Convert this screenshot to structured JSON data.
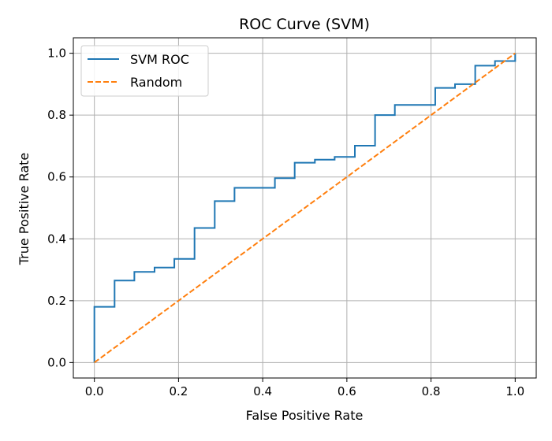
{
  "chart_data": {
    "type": "line",
    "title": "ROC Curve (SVM)",
    "xlabel": "False Positive Rate",
    "ylabel": "True Positive Rate",
    "xlim": [
      -0.05,
      1.05
    ],
    "ylim": [
      -0.05,
      1.05
    ],
    "xticks": [
      0.0,
      0.2,
      0.4,
      0.6,
      0.8,
      1.0
    ],
    "yticks": [
      0.0,
      0.2,
      0.4,
      0.6,
      0.8,
      1.0
    ],
    "xtick_labels": [
      "0.0",
      "0.2",
      "0.4",
      "0.6",
      "0.8",
      "1.0"
    ],
    "ytick_labels": [
      "0.0",
      "0.2",
      "0.4",
      "0.6",
      "0.8",
      "1.0"
    ],
    "grid": true,
    "legend_position": "top-left",
    "series": [
      {
        "name": "SVM ROC",
        "color": "#1f77b4",
        "style": "solid",
        "x": [
          0.0,
          0.0,
          0.048,
          0.048,
          0.095,
          0.095,
          0.143,
          0.143,
          0.19,
          0.19,
          0.238,
          0.238,
          0.286,
          0.286,
          0.333,
          0.333,
          0.429,
          0.429,
          0.476,
          0.476,
          0.524,
          0.524,
          0.571,
          0.571,
          0.619,
          0.619,
          0.667,
          0.667,
          0.714,
          0.714,
          0.81,
          0.81,
          0.857,
          0.857,
          0.905,
          0.905,
          0.952,
          0.952,
          1.0,
          1.0
        ],
        "y": [
          0.0,
          0.18,
          0.18,
          0.265,
          0.265,
          0.293,
          0.293,
          0.307,
          0.307,
          0.335,
          0.335,
          0.435,
          0.435,
          0.522,
          0.522,
          0.565,
          0.565,
          0.596,
          0.596,
          0.646,
          0.646,
          0.656,
          0.656,
          0.665,
          0.665,
          0.701,
          0.701,
          0.8,
          0.8,
          0.833,
          0.833,
          0.888,
          0.888,
          0.9,
          0.9,
          0.96,
          0.96,
          0.975,
          0.975,
          1.0
        ]
      },
      {
        "name": "Random",
        "color": "#ff7f0e",
        "style": "dashed",
        "x": [
          0.0,
          1.0
        ],
        "y": [
          0.0,
          1.0
        ]
      }
    ]
  }
}
